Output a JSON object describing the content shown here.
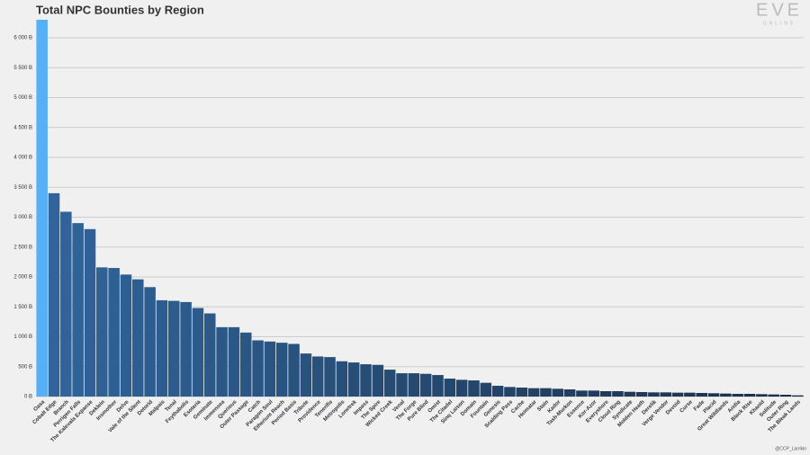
{
  "chart_data": {
    "type": "bar",
    "title": "Total NPC Bounties by Region",
    "logo": "EVE",
    "logo_sub": "ONLINE",
    "credit": "@CCP_Larrikin",
    "categories": [
      "Oasa",
      "Cobalt Edge",
      "Branch",
      "Perrigen Falls",
      "The Kalevala Expanse",
      "Deklein",
      "Insmother",
      "Delve",
      "Vale of the Silent",
      "Detorid",
      "Malpais",
      "Tenal",
      "Feythabolis",
      "Esoteria",
      "Geminate",
      "Immensea",
      "Querious",
      "Outer Passage",
      "Catch",
      "Paragon Soul",
      "Etherium Reach",
      "Period Basis",
      "Tribute",
      "Providence",
      "Tenerifis",
      "Metropolis",
      "Lonetrek",
      "Impass",
      "The Spire",
      "Wicked Creek",
      "Venal",
      "The Forge",
      "Pure Blind",
      "Omist",
      "The Citadel",
      "Sinq Laison",
      "Domain",
      "Fountain",
      "Genesis",
      "Scalding Pass",
      "Cache",
      "Heimatar",
      "Stain",
      "Kador",
      "Tash-Murkon",
      "Essence",
      "Kor-Azor",
      "Everyshore",
      "Cloud Ring",
      "Syndicate",
      "Molden Heath",
      "Derelik",
      "Verge Vendor",
      "Devoid",
      "Curse",
      "Fade",
      "Placid",
      "Great Wildlands",
      "Aridia",
      "Black Rise",
      "Khanid",
      "Solitude",
      "Outer Ring",
      "The Bleak Lands"
    ],
    "values": [
      6300,
      3400,
      3090,
      2900,
      2800,
      2160,
      2150,
      2040,
      1960,
      1830,
      1610,
      1600,
      1580,
      1480,
      1390,
      1160,
      1160,
      1070,
      940,
      920,
      900,
      880,
      720,
      670,
      660,
      590,
      570,
      540,
      530,
      450,
      390,
      390,
      380,
      360,
      300,
      280,
      270,
      230,
      180,
      160,
      150,
      140,
      140,
      130,
      120,
      100,
      100,
      90,
      90,
      80,
      75,
      70,
      70,
      65,
      65,
      60,
      55,
      50,
      45,
      45,
      40,
      35,
      30,
      20
    ],
    "highlight_color": "#55b0f5",
    "color": "#30649a",
    "color_end": "#1a2e46",
    "ylim": [
      0,
      6300
    ],
    "yticks": [
      {
        "value": 0,
        "label": "0 B"
      },
      {
        "value": 500,
        "label": "500 B"
      },
      {
        "value": 1000,
        "label": "1 000 B"
      },
      {
        "value": 1500,
        "label": "1 500 B"
      },
      {
        "value": 2000,
        "label": "2 000 B"
      },
      {
        "value": 2500,
        "label": "2 500 B"
      },
      {
        "value": 3000,
        "label": "3 000 B"
      },
      {
        "value": 3500,
        "label": "3 500 B"
      },
      {
        "value": 4000,
        "label": "4 000 B"
      },
      {
        "value": 4500,
        "label": "4 500 B"
      },
      {
        "value": 5000,
        "label": "5 000 B"
      },
      {
        "value": 5500,
        "label": "5 500 B"
      },
      {
        "value": 6000,
        "label": "6 000 B"
      }
    ],
    "grid": true
  }
}
